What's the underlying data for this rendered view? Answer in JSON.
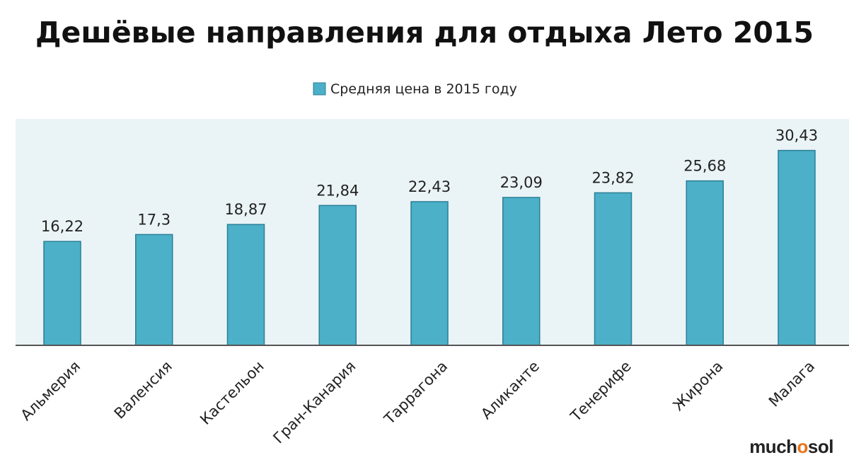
{
  "chart_data": {
    "type": "bar",
    "title": "Дешёвые направления для отдыха Лето 2015",
    "categories": [
      "Альмерия",
      "Валенсия",
      "Кастельон",
      "Гран-Канария",
      "Таррагона",
      "Аликанте",
      "Тенерифе",
      "Жирона",
      "Малага"
    ],
    "series": [
      {
        "name": "Средняя цена в 2015 году",
        "values": [
          16.22,
          17.3,
          18.87,
          21.84,
          22.43,
          23.09,
          23.82,
          25.68,
          30.43
        ],
        "labels": [
          "16,22",
          "17,3",
          "18,87",
          "21,84",
          "22,43",
          "23,09",
          "23,82",
          "25,68",
          "30,43"
        ]
      }
    ],
    "ylim": [
      0,
      32
    ],
    "grid": false,
    "legend": "top",
    "colors": {
      "bar": "#4bb0c8",
      "bar_border": "#2b7f96",
      "plot_bg": "#eaf3f6",
      "axis": "#555555"
    }
  },
  "branding": {
    "logo_text": "muchosol"
  }
}
